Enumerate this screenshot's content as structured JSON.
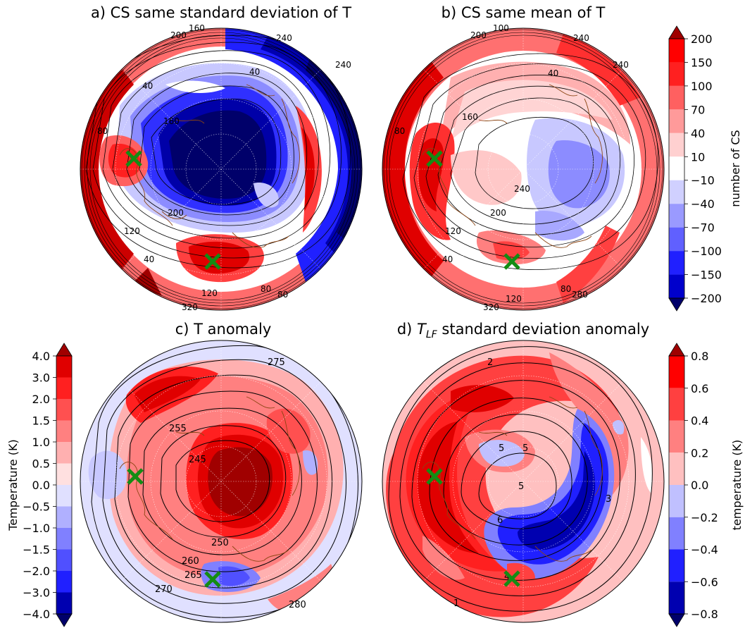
{
  "chart_data": [
    {
      "type": "heatmap",
      "title": "a) CS same standard deviation of T",
      "contour_labels": [
        "160",
        "240",
        "200",
        "240",
        "40",
        "40",
        "160",
        "80",
        "200",
        "120",
        "40",
        "120",
        "80",
        "80",
        "320"
      ],
      "markers": 2,
      "colorbar_group": "cs"
    },
    {
      "type": "heatmap",
      "title": "b) CS same mean of T",
      "contour_labels": [
        "100",
        "200",
        "240",
        "240",
        "40",
        "160",
        "80",
        "240",
        "200",
        "120",
        "40",
        "120",
        "80",
        "280",
        "320"
      ],
      "markers": 2,
      "colorbar_group": "cs"
    },
    {
      "type": "heatmap",
      "title": "c) T anomaly",
      "contour_labels": [
        "275",
        "255",
        "245",
        "250",
        "260",
        "265",
        "270",
        "280"
      ],
      "markers": 2,
      "colorbar_group": "t"
    },
    {
      "type": "heatmap",
      "title_prefix": "d) ",
      "title_var": "T",
      "title_sub": "LF",
      "title_suffix": " standard deviation anomaly",
      "contour_labels": [
        "2",
        "5",
        "5",
        "5",
        "6",
        "3",
        "4",
        "1"
      ],
      "markers": 2,
      "colorbar_group": "tlf"
    }
  ],
  "colorbars": {
    "cs": {
      "label": "number of CS",
      "ticks": [
        "200",
        "150",
        "100",
        "70",
        "40",
        "10",
        "−10",
        "−40",
        "−70",
        "−100",
        "−150",
        "−200"
      ],
      "colors": [
        "#a00000",
        "#ff0000",
        "#ff2020",
        "#ff6060",
        "#ff9a9a",
        "#ffd0d0",
        "#ffffff",
        "#d0d0ff",
        "#9a9aff",
        "#6060ff",
        "#2020ff",
        "#0000cc",
        "#00006a"
      ]
    },
    "t": {
      "label": "Temperature (K)",
      "ticks": [
        "4.0",
        "3.0",
        "2.0",
        "1.5",
        "1.0",
        "0.5",
        "0.0",
        "−0.5",
        "−1.0",
        "−1.5",
        "−2.0",
        "−3.0",
        "−4.0"
      ],
      "colors": [
        "#a00000",
        "#e00000",
        "#ff2020",
        "#ff5050",
        "#ff8080",
        "#ffb0b0",
        "#ffe0e0",
        "#e0e0ff",
        "#b0b0ff",
        "#8080ff",
        "#5050ff",
        "#2020ff",
        "#0000b0",
        "#00006a"
      ]
    },
    "tlf": {
      "label": "temperature (K)",
      "ticks": [
        "0.8",
        "0.6",
        "0.4",
        "0.2",
        "0.0",
        "−0.2",
        "−0.4",
        "−0.6",
        "−0.8"
      ],
      "colors": [
        "#a00000",
        "#ff0000",
        "#ff4040",
        "#ff8080",
        "#ffc0c0",
        "#c0c0ff",
        "#8080ff",
        "#2020ff",
        "#0000b0",
        "#00006a"
      ]
    }
  },
  "styles": {
    "marker_color": "#148c14",
    "coast_color": "#8b4513",
    "contour_color": "#000000"
  }
}
